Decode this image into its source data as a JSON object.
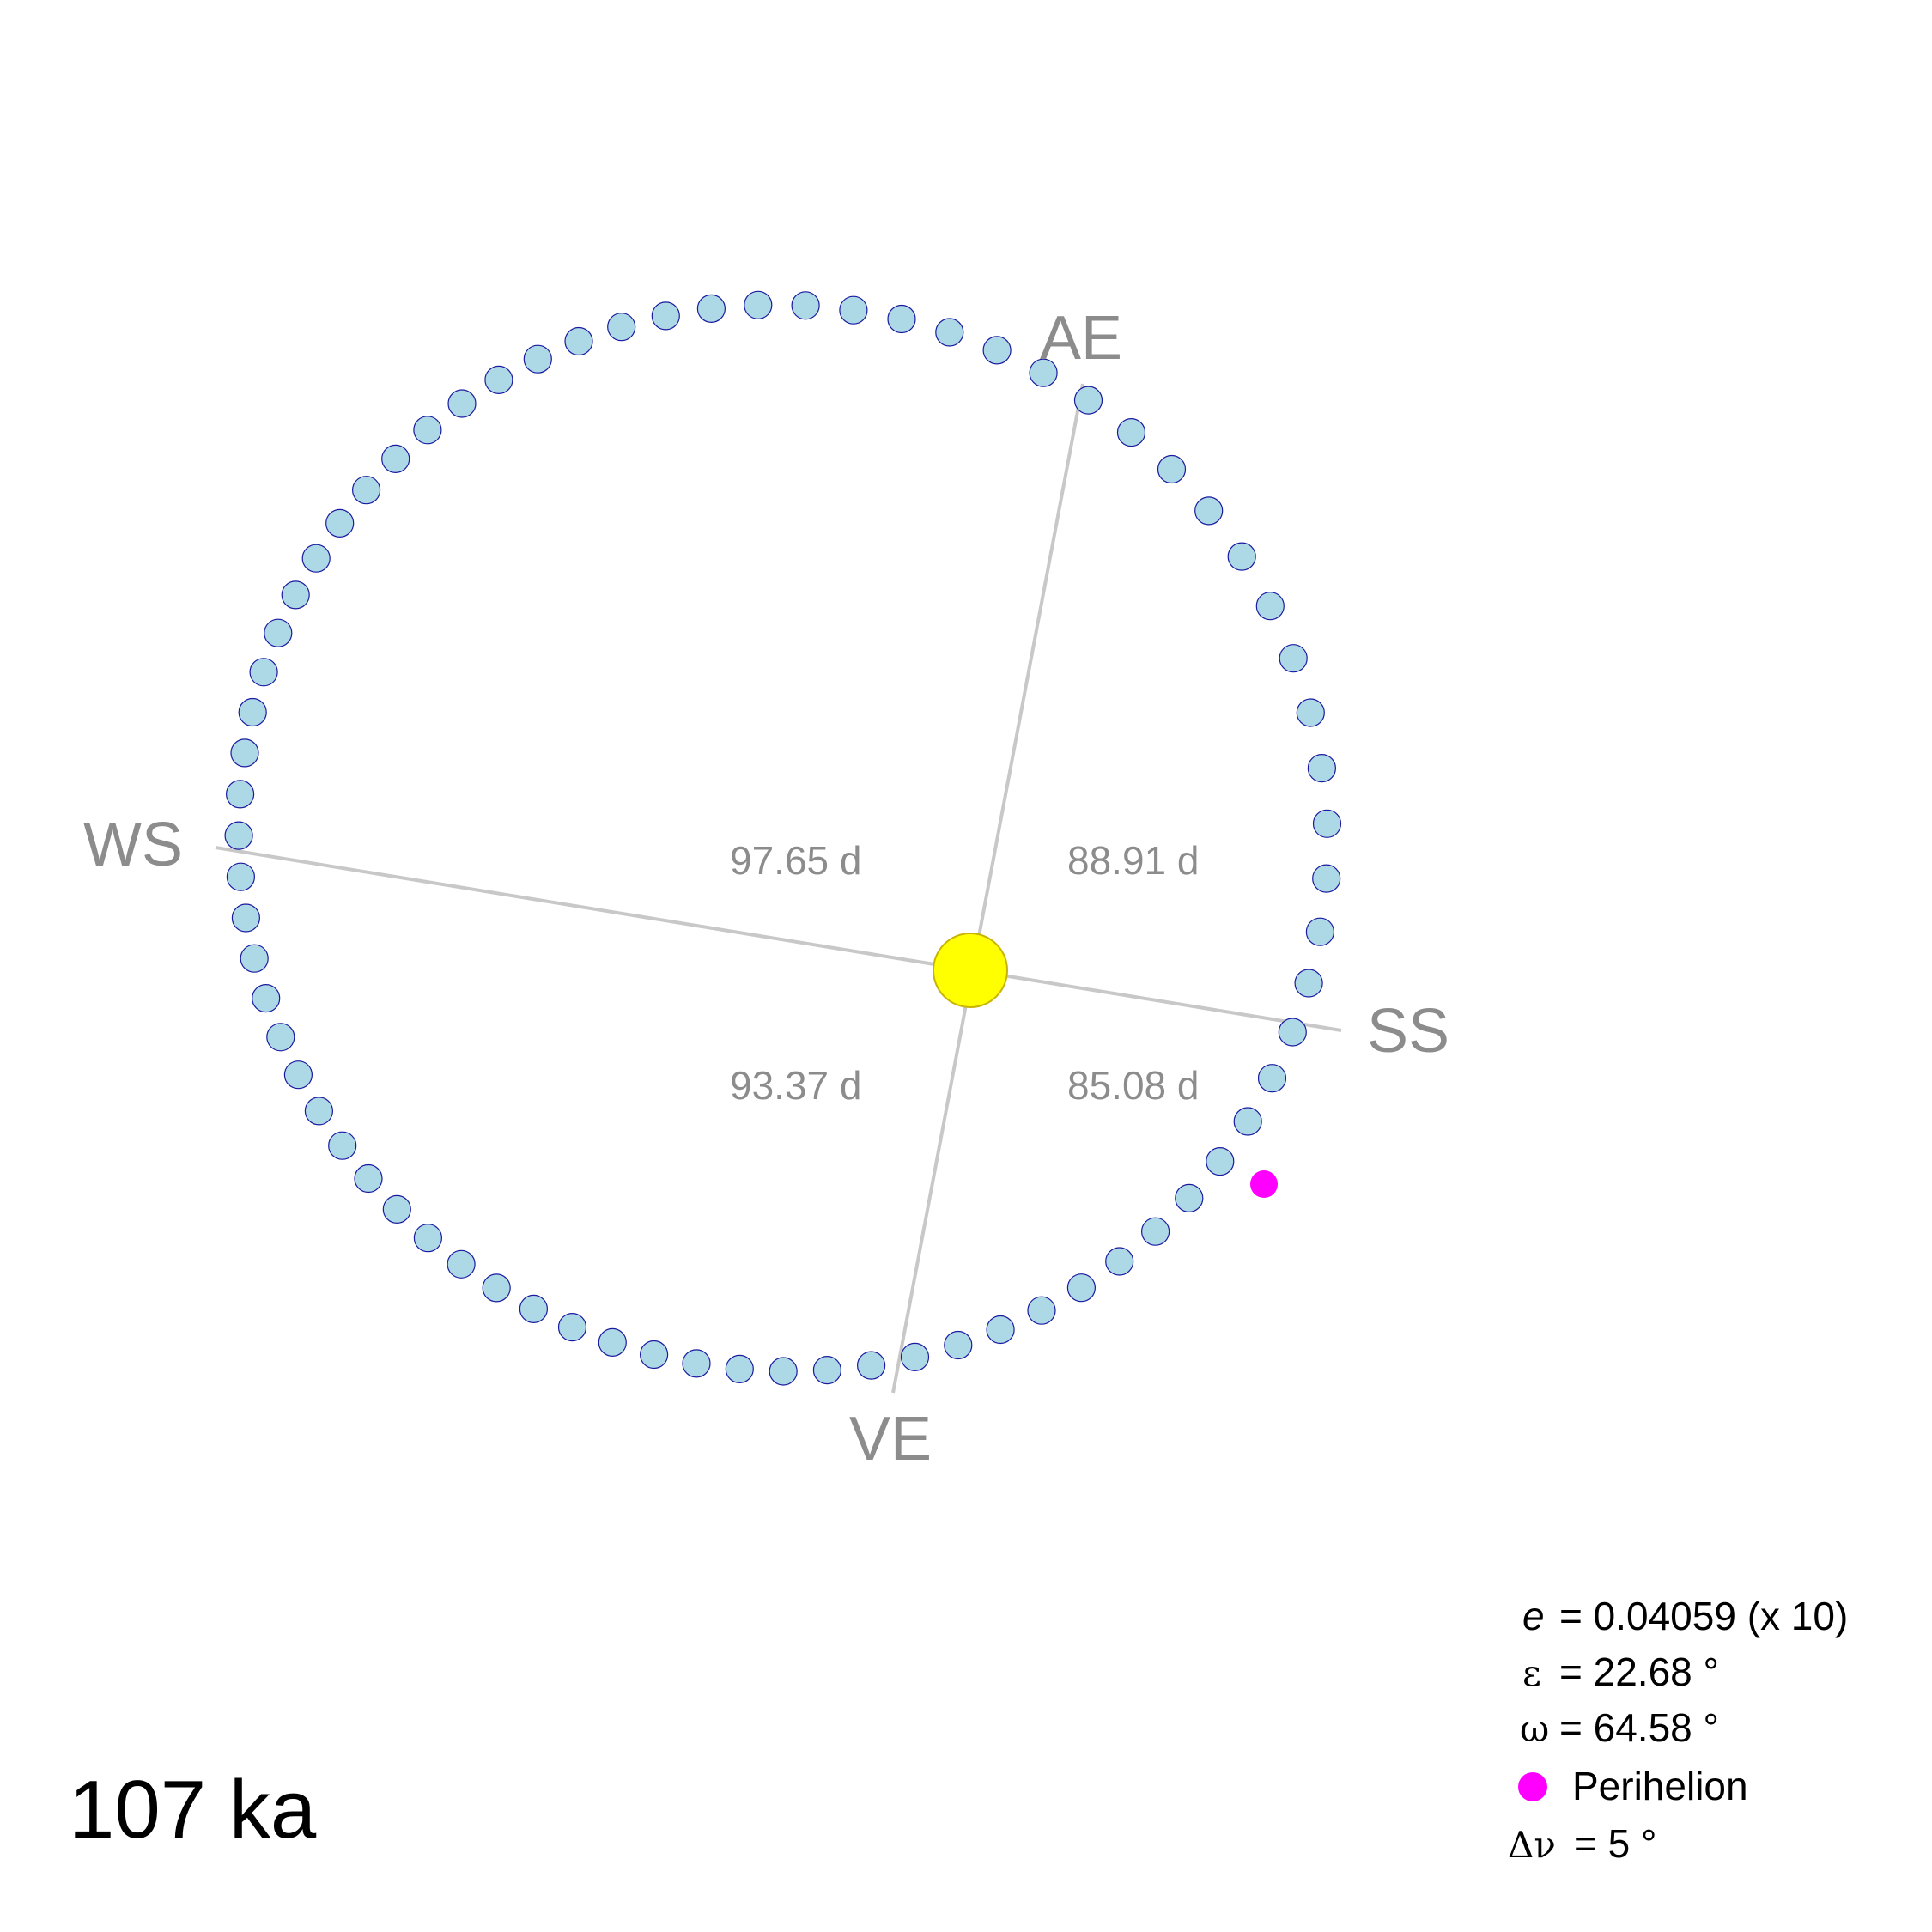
{
  "time_label": "107 ka",
  "seasons": {
    "ae": "AE",
    "ss": "SS",
    "ve": "VE",
    "ws": "WS"
  },
  "season_lengths": {
    "top_left": "97.65 d",
    "top_right": "88.91 d",
    "bottom_left": "93.37 d",
    "bottom_right": "85.08 d"
  },
  "legend": {
    "e_symbol": "e",
    "e_text": "= 0.04059 (x 10)",
    "eps_symbol": "ε",
    "eps_text": "= 22.68 °",
    "omega_symbol": "ω",
    "omega_text": "= 64.58 °",
    "perihelion_text": "Perihelion",
    "dnu_symbol": "Δν",
    "dnu_text": "=  5 °"
  },
  "colors": {
    "orbit_fill": "#add8e6",
    "orbit_stroke": "#1a1aa0",
    "sun_fill": "#ffff00",
    "sun_stroke": "#c8b400",
    "perihelion": "#ff00ff",
    "axis_line": "#c8c8c8",
    "label_gray": "#8c8c8c"
  }
}
